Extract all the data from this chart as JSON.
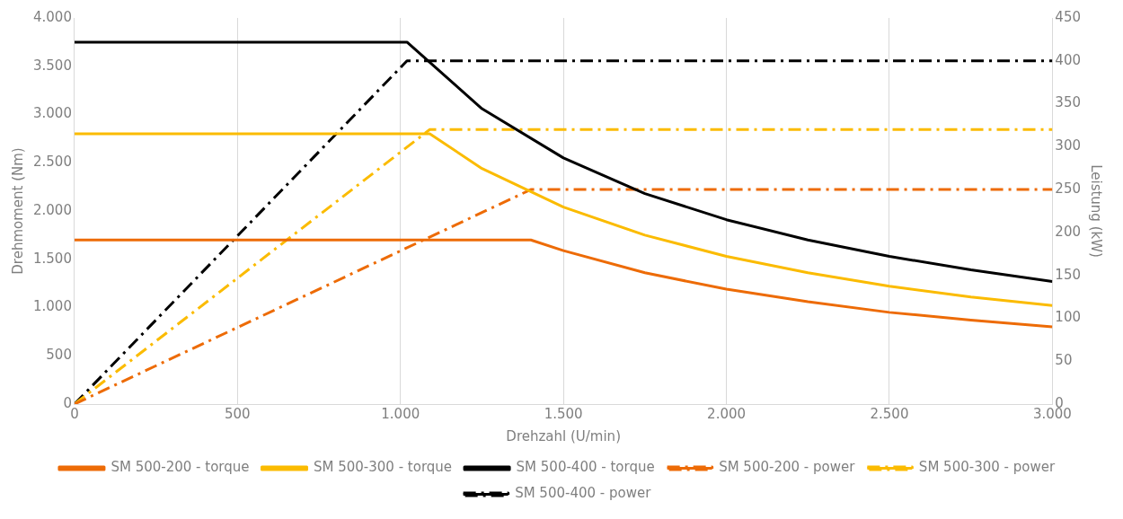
{
  "chart_data": {
    "type": "line",
    "xlabel": "Drehzahl (U/min)",
    "ylabel": "Drehmoment (Nm)",
    "y2label": "Leistung (kW)",
    "xlim": [
      0,
      3000
    ],
    "xticks": [
      {
        "value": 0,
        "label": "0"
      },
      {
        "value": 500,
        "label": "500"
      },
      {
        "value": 1000,
        "label": "1.000"
      },
      {
        "value": 1500,
        "label": "1.500"
      },
      {
        "value": 2000,
        "label": "2.000"
      },
      {
        "value": 2500,
        "label": "2.500"
      },
      {
        "value": 3000,
        "label": "3.000"
      }
    ],
    "ylim": [
      0,
      4000
    ],
    "yticks": [
      {
        "value": 0,
        "label": "0"
      },
      {
        "value": 500,
        "label": "500"
      },
      {
        "value": 1000,
        "label": "1.000"
      },
      {
        "value": 1500,
        "label": "1.500"
      },
      {
        "value": 2000,
        "label": "2.000"
      },
      {
        "value": 2500,
        "label": "2.500"
      },
      {
        "value": 3000,
        "label": "3.000"
      },
      {
        "value": 3500,
        "label": "3.500"
      },
      {
        "value": 4000,
        "label": "4.000"
      }
    ],
    "y2lim": [
      0,
      450
    ],
    "y2ticks": [
      0,
      50,
      100,
      150,
      200,
      250,
      300,
      350,
      400,
      450
    ],
    "grid": "x",
    "legend": "bottom",
    "marker": "none",
    "series": [
      {
        "name": "SM 500-200 - torque",
        "color": "#ed6b06",
        "line_style": "solid",
        "x": [
          0,
          1400,
          1500,
          1750,
          2000,
          2250,
          2500,
          2750,
          3000
        ],
        "values": [
          1700,
          1700,
          1590,
          1360,
          1190,
          1060,
          950,
          870,
          800
        ]
      },
      {
        "name": "SM 500-300 - torque",
        "color": "#fbbb00",
        "line_style": "solid",
        "x": [
          0,
          1090,
          1250,
          1500,
          1750,
          2000,
          2250,
          2500,
          2750,
          3000
        ],
        "values": [
          2800,
          2800,
          2440,
          2040,
          1750,
          1530,
          1360,
          1220,
          1110,
          1020
        ]
      },
      {
        "name": "SM 500-400 - torque",
        "color": "#000000",
        "line_style": "solid",
        "x": [
          0,
          1020,
          1250,
          1500,
          1750,
          2000,
          2250,
          2500,
          2750,
          3000
        ],
        "values": [
          3750,
          3750,
          3060,
          2550,
          2180,
          1910,
          1700,
          1530,
          1390,
          1270
        ]
      },
      {
        "name": "SM 500-200 - power",
        "color": "#ed6b06",
        "line_style": "dashed",
        "axis": "y2",
        "x": [
          0,
          1400,
          3000
        ],
        "values": [
          0,
          250,
          250
        ]
      },
      {
        "name": "SM 500-300 - power",
        "color": "#fbbb00",
        "line_style": "dashed",
        "axis": "y2",
        "x": [
          0,
          1090,
          3000
        ],
        "values": [
          0,
          320,
          320
        ]
      },
      {
        "name": "SM 500-400 - power",
        "color": "#000000",
        "line_style": "dashed",
        "axis": "y2",
        "x": [
          0,
          1020,
          3000
        ],
        "values": [
          0,
          400,
          400
        ]
      }
    ]
  }
}
